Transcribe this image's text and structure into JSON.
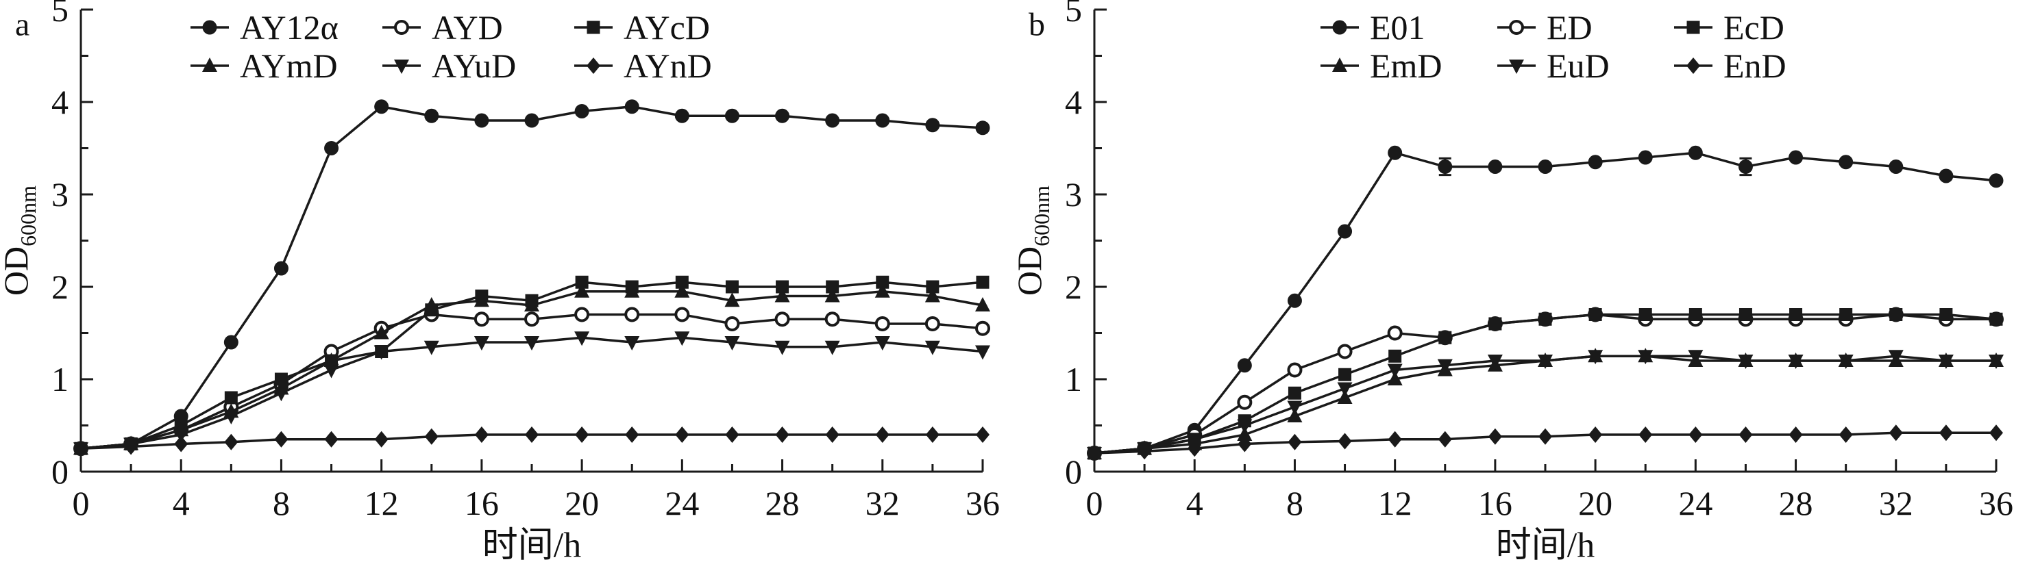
{
  "style": {
    "line_color": "#1a1a1a",
    "background": "#ffffff"
  },
  "chart_data": [
    {
      "type": "line",
      "panel": "a",
      "title": "",
      "xlabel": "时间/h",
      "ylabel": "OD",
      "ylabel_sub": "600nm",
      "xlim": [
        0,
        36
      ],
      "ylim": [
        0,
        5
      ],
      "x_major": 4,
      "x_minor": 2,
      "y_major": 1,
      "y_minor": 0.5,
      "legend_position": "top-inside",
      "x": [
        0,
        2,
        4,
        6,
        8,
        10,
        12,
        14,
        16,
        18,
        20,
        22,
        24,
        26,
        28,
        30,
        32,
        34,
        36
      ],
      "series": [
        {
          "name": "AY12α",
          "marker": "circle-filled",
          "values": [
            0.25,
            0.3,
            0.6,
            1.4,
            2.2,
            3.5,
            3.95,
            3.85,
            3.8,
            3.8,
            3.9,
            3.95,
            3.85,
            3.85,
            3.85,
            3.8,
            3.8,
            3.75,
            3.72
          ]
        },
        {
          "name": "AYD",
          "marker": "circle-open",
          "values": [
            0.25,
            0.3,
            0.45,
            0.7,
            0.95,
            1.3,
            1.55,
            1.7,
            1.65,
            1.65,
            1.7,
            1.7,
            1.7,
            1.6,
            1.65,
            1.65,
            1.6,
            1.6,
            1.55
          ]
        },
        {
          "name": "AYcD",
          "marker": "square-filled",
          "values": [
            0.25,
            0.3,
            0.5,
            0.8,
            1.0,
            1.2,
            1.3,
            1.75,
            1.9,
            1.85,
            2.05,
            2.0,
            2.05,
            2.0,
            2.0,
            2.0,
            2.05,
            2.0,
            2.05
          ]
        },
        {
          "name": "AYmD",
          "marker": "triangle-up-filled",
          "values": [
            0.25,
            0.3,
            0.45,
            0.65,
            0.9,
            1.2,
            1.5,
            1.8,
            1.85,
            1.8,
            1.95,
            1.95,
            1.95,
            1.85,
            1.9,
            1.9,
            1.95,
            1.9,
            1.8
          ]
        },
        {
          "name": "AYuD",
          "marker": "triangle-down-filled",
          "values": [
            0.25,
            0.3,
            0.4,
            0.6,
            0.85,
            1.1,
            1.3,
            1.35,
            1.4,
            1.4,
            1.45,
            1.4,
            1.45,
            1.4,
            1.35,
            1.35,
            1.4,
            1.35,
            1.3
          ]
        },
        {
          "name": "AYnD",
          "marker": "diamond-filled",
          "values": [
            0.25,
            0.27,
            0.3,
            0.32,
            0.35,
            0.35,
            0.35,
            0.38,
            0.4,
            0.4,
            0.4,
            0.4,
            0.4,
            0.4,
            0.4,
            0.4,
            0.4,
            0.4,
            0.4
          ]
        }
      ]
    },
    {
      "type": "line",
      "panel": "b",
      "title": "",
      "xlabel": "时间/h",
      "ylabel": "OD",
      "ylabel_sub": "600nm",
      "xlim": [
        0,
        36
      ],
      "ylim": [
        0,
        5
      ],
      "x_major": 4,
      "x_minor": 2,
      "y_major": 1,
      "y_minor": 0.5,
      "legend_position": "top-inside",
      "x": [
        0,
        2,
        4,
        6,
        8,
        10,
        12,
        14,
        16,
        18,
        20,
        22,
        24,
        26,
        28,
        30,
        32,
        34,
        36
      ],
      "series": [
        {
          "name": "E01",
          "marker": "circle-filled",
          "values": [
            0.2,
            0.25,
            0.45,
            1.15,
            1.85,
            2.6,
            3.45,
            3.3,
            3.3,
            3.3,
            3.35,
            3.4,
            3.45,
            3.3,
            3.4,
            3.35,
            3.3,
            3.2,
            3.15
          ],
          "error_x": [
            14,
            26
          ],
          "error": 0.09
        },
        {
          "name": "ED",
          "marker": "circle-open",
          "values": [
            0.2,
            0.25,
            0.4,
            0.75,
            1.1,
            1.3,
            1.5,
            1.45,
            1.6,
            1.65,
            1.7,
            1.65,
            1.65,
            1.65,
            1.65,
            1.65,
            1.7,
            1.65,
            1.65
          ]
        },
        {
          "name": "EcD",
          "marker": "square-filled",
          "values": [
            0.2,
            0.25,
            0.35,
            0.55,
            0.85,
            1.05,
            1.25,
            1.45,
            1.6,
            1.65,
            1.7,
            1.7,
            1.7,
            1.7,
            1.7,
            1.7,
            1.7,
            1.7,
            1.65
          ]
        },
        {
          "name": "EmD",
          "marker": "triangle-up-filled",
          "values": [
            0.2,
            0.25,
            0.3,
            0.4,
            0.6,
            0.8,
            1.0,
            1.1,
            1.15,
            1.2,
            1.25,
            1.25,
            1.2,
            1.2,
            1.2,
            1.2,
            1.2,
            1.2,
            1.2
          ]
        },
        {
          "name": "EuD",
          "marker": "triangle-down-filled",
          "values": [
            0.2,
            0.25,
            0.35,
            0.5,
            0.7,
            0.9,
            1.1,
            1.15,
            1.2,
            1.2,
            1.25,
            1.25,
            1.25,
            1.2,
            1.2,
            1.2,
            1.25,
            1.2,
            1.2
          ]
        },
        {
          "name": "EnD",
          "marker": "diamond-filled",
          "values": [
            0.2,
            0.22,
            0.25,
            0.3,
            0.32,
            0.33,
            0.35,
            0.35,
            0.38,
            0.38,
            0.4,
            0.4,
            0.4,
            0.4,
            0.4,
            0.4,
            0.42,
            0.42,
            0.42
          ]
        }
      ]
    }
  ]
}
